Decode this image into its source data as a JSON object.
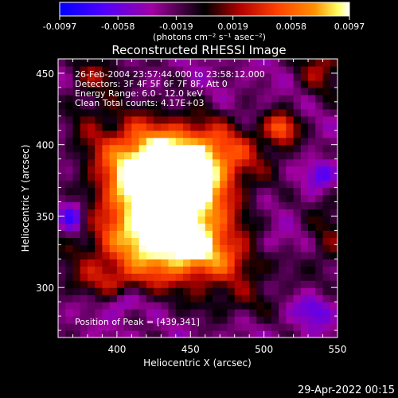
{
  "chart_data": {
    "type": "heatmap",
    "title": "Reconstructed RHESSI Image",
    "xlabel": "Heliocentric X (arcsec)",
    "ylabel": "Heliocentric Y (arcsec)",
    "xlim": [
      360,
      550
    ],
    "ylim": [
      265,
      460
    ],
    "xticks": [
      400,
      450,
      500,
      550
    ],
    "yticks": [
      300,
      350,
      400,
      450
    ],
    "colorbar": {
      "ticks": [
        "-0.0097",
        "-0.0058",
        "-0.0019",
        "0.0019",
        "0.0058",
        "0.0097"
      ],
      "tick_values": [
        -0.0097,
        -0.0058,
        -0.0019,
        0.0019,
        0.0058,
        0.0097
      ],
      "range": [
        -0.0097,
        0.0097
      ],
      "unit": "(photons cm⁻² s⁻¹ asec⁻²)",
      "colormap": [
        "#0000ff",
        "#5000ff",
        "#a000a0",
        "#000000",
        "#b00000",
        "#ff4000",
        "#ff9000",
        "#ffff60",
        "#ffffff"
      ]
    },
    "annotations": [
      "26-Feb-2004 23:57:44.000 to 23:58:12.000",
      "Detectors: 3F 4F 5F 6F 7F 8F, Att 0",
      "Energy Range: 6.0 - 12.0 keV",
      "Clean     Total counts: 4.17E+03"
    ],
    "peak_label": "Position of Peak = [439,341]",
    "peak_position": [
      439,
      341
    ],
    "sources": [
      {
        "x": 437,
        "y": 380,
        "sx": 26,
        "sy": 22,
        "amp": 0.0105
      },
      {
        "x": 445,
        "y": 350,
        "sx": 22,
        "sy": 24,
        "amp": 0.0095
      },
      {
        "x": 410,
        "y": 375,
        "sx": 18,
        "sy": 30,
        "amp": 0.007
      },
      {
        "x": 465,
        "y": 395,
        "sx": 30,
        "sy": 16,
        "amp": 0.0055
      },
      {
        "x": 420,
        "y": 330,
        "sx": 35,
        "sy": 15,
        "amp": 0.006
      },
      {
        "x": 470,
        "y": 320,
        "sx": 30,
        "sy": 14,
        "amp": 0.005
      },
      {
        "x": 395,
        "y": 305,
        "sx": 25,
        "sy": 10,
        "amp": 0.004
      },
      {
        "x": 512,
        "y": 412,
        "sx": 8,
        "sy": 8,
        "amp": 0.0075
      },
      {
        "x": 540,
        "y": 455,
        "sx": 12,
        "sy": 14,
        "amp": 0.005
      },
      {
        "x": 545,
        "y": 340,
        "sx": 10,
        "sy": 30,
        "amp": 0.003
      },
      {
        "x": 480,
        "y": 290,
        "sx": 25,
        "sy": 10,
        "amp": 0.0025
      },
      {
        "x": 380,
        "y": 420,
        "sx": 12,
        "sy": 25,
        "amp": 0.0025
      },
      {
        "x": 390,
        "y": 450,
        "sx": 14,
        "sy": 8,
        "amp": 0.003
      },
      {
        "x": 370,
        "y": 350,
        "sx": 6,
        "sy": 8,
        "amp": -0.005
      },
      {
        "x": 540,
        "y": 380,
        "sx": 8,
        "sy": 8,
        "amp": -0.005
      },
      {
        "x": 535,
        "y": 285,
        "sx": 10,
        "sy": 8,
        "amp": -0.004
      },
      {
        "x": 505,
        "y": 330,
        "sx": 10,
        "sy": 8,
        "amp": -0.003
      },
      {
        "x": 405,
        "y": 290,
        "sx": 8,
        "sy": 6,
        "amp": -0.0035
      }
    ]
  },
  "footer": {
    "timestamp": "29-Apr-2022 00:15"
  }
}
